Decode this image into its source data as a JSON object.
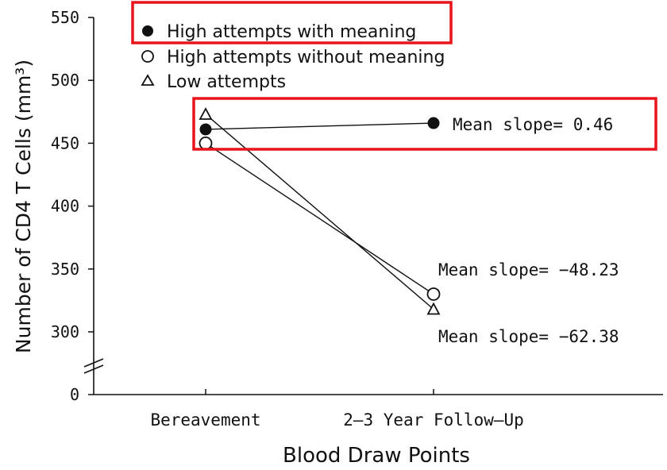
{
  "chart_data": {
    "type": "line",
    "xlabel": "Blood Draw Points",
    "ylabel": "Number of CD4 T Cells (mm³)",
    "categories": [
      "Bereavement",
      "2–3 Year Follow–Up"
    ],
    "y_ticks": [
      "0",
      "300",
      "350",
      "400",
      "450",
      "500",
      "550"
    ],
    "axis_break": true,
    "ylim": [
      300,
      550
    ],
    "legend_position": "top-left",
    "series": [
      {
        "name": "High attempts with meaning",
        "marker": "filled-circle",
        "values": [
          461,
          466
        ]
      },
      {
        "name": "High attempts without meaning",
        "marker": "open-circle",
        "values": [
          450,
          330
        ]
      },
      {
        "name": "Low attempts",
        "marker": "open-triangle",
        "values": [
          473,
          318
        ]
      }
    ],
    "annotations": [
      "Mean slope= 0.46",
      "Mean slope= −48.23",
      "Mean slope= −62.38"
    ],
    "highlight_color": "#e8141b"
  }
}
